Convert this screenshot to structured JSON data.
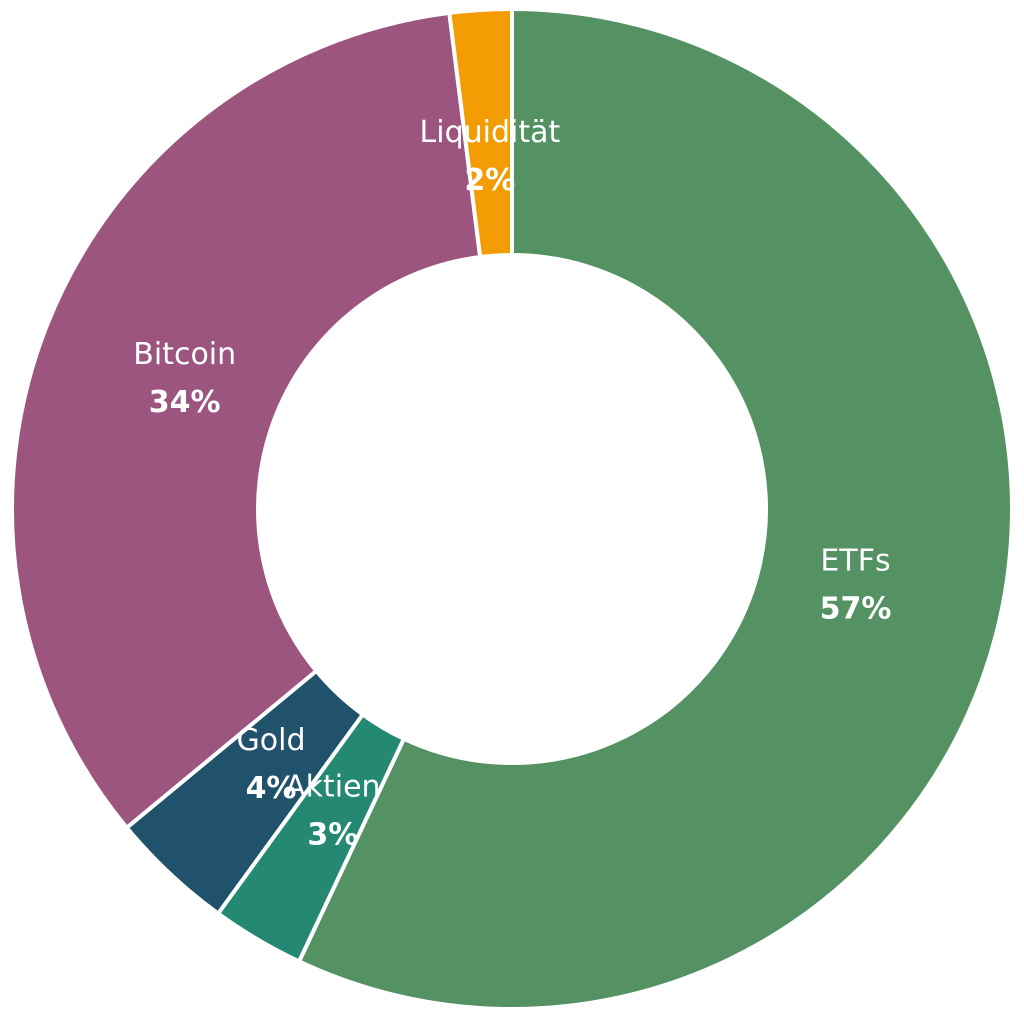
{
  "chart_data": {
    "type": "pie",
    "variant": "donut",
    "title": "",
    "legend": "none",
    "slices": [
      {
        "label": "ETFs",
        "value": 57,
        "value_label": "57%",
        "color": "#549263"
      },
      {
        "label": "Aktien",
        "value": 3,
        "value_label": "3%",
        "color": "#258873"
      },
      {
        "label": "Gold",
        "value": 4,
        "value_label": "4%",
        "color": "#20526C"
      },
      {
        "label": "Bitcoin",
        "value": 34,
        "value_label": "34%",
        "color": "#9C557E"
      },
      {
        "label": "Liquidität",
        "value": 2,
        "value_label": "2%",
        "color": "#F39C04"
      }
    ]
  }
}
